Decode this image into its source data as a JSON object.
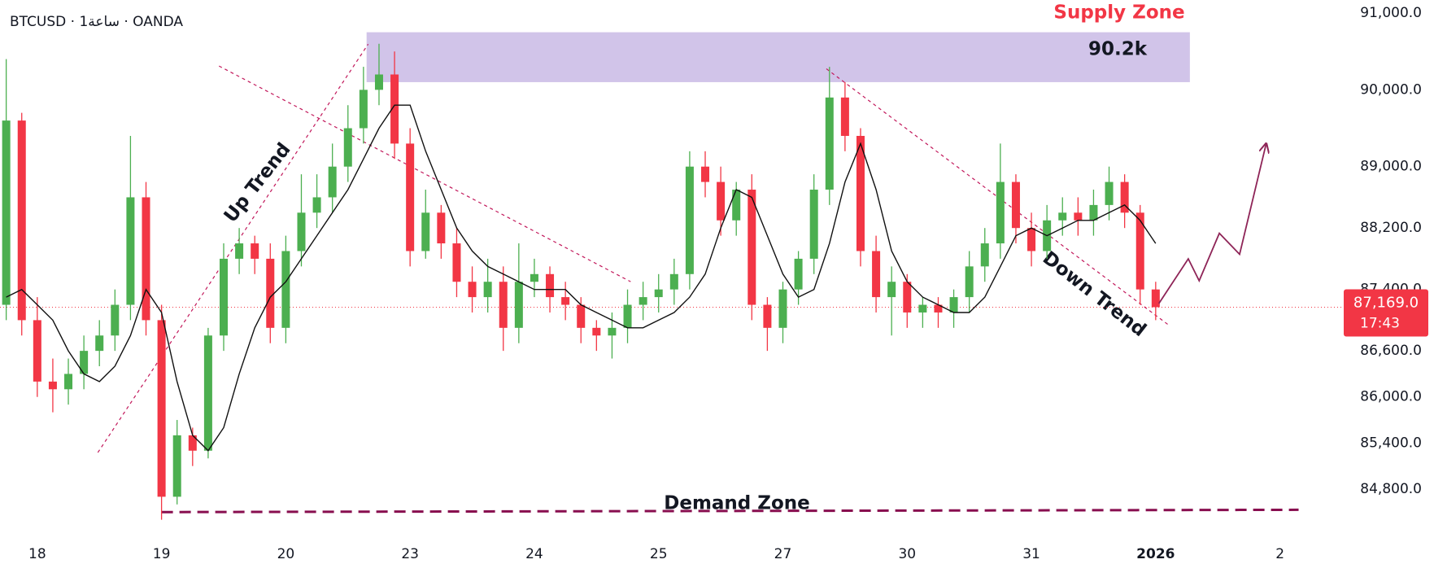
{
  "chart_data": {
    "type": "candlestick",
    "header": "BTCUSD · 1ساعة · OANDA",
    "x": [
      -2,
      -1,
      0,
      1,
      2,
      3,
      4,
      5,
      6,
      7,
      8,
      9,
      10,
      11,
      12,
      13,
      14,
      15,
      16,
      17,
      18,
      19,
      20,
      21,
      22,
      23,
      24,
      25,
      26,
      27,
      28,
      29,
      30,
      31,
      32,
      33,
      34,
      35,
      36,
      37,
      38,
      39,
      40,
      41,
      42,
      43,
      44,
      45,
      46,
      47,
      48,
      49,
      50,
      51,
      52,
      53,
      54,
      55,
      56,
      57,
      58,
      59,
      60,
      61,
      62,
      63,
      64,
      65,
      66,
      67,
      68,
      69,
      70,
      71,
      72
    ],
    "open": [
      87200,
      89600,
      87000,
      86200,
      86100,
      86300,
      86600,
      86800,
      87200,
      88600,
      87000,
      84700,
      85500,
      85300,
      86800,
      87800,
      88000,
      87800,
      86900,
      87900,
      88400,
      88600,
      89000,
      89500,
      90000,
      90200,
      89300,
      87900,
      88400,
      88000,
      87500,
      87300,
      87500,
      86900,
      87500,
      87600,
      87300,
      87200,
      86900,
      86800,
      86900,
      87200,
      87300,
      87400,
      87600,
      89000,
      88800,
      88300,
      88700,
      87200,
      86900,
      87400,
      87800,
      88700,
      89900,
      89400,
      87900,
      87300,
      87500,
      87100,
      87200,
      87100,
      87300,
      87700,
      88000,
      88800,
      88200,
      87900,
      88300,
      88400,
      88300,
      88500,
      88800,
      88400,
      87400
    ],
    "high": [
      90400,
      89700,
      87300,
      86500,
      86500,
      86800,
      87000,
      87400,
      89400,
      88800,
      87200,
      85700,
      85600,
      86900,
      88000,
      88200,
      88100,
      88000,
      88100,
      88900,
      88900,
      89300,
      89800,
      90300,
      90600,
      90500,
      89500,
      88700,
      88500,
      88200,
      87700,
      87800,
      87700,
      88000,
      87800,
      87700,
      87500,
      87300,
      87000,
      87100,
      87400,
      87500,
      87600,
      87800,
      89200,
      89200,
      89000,
      88800,
      88900,
      87300,
      87500,
      87900,
      88900,
      90300,
      90100,
      89500,
      88100,
      87700,
      87600,
      87300,
      87300,
      87400,
      87900,
      88200,
      89300,
      88900,
      88400,
      88500,
      88600,
      88600,
      88700,
      89000,
      88900,
      88500,
      87500
    ],
    "low": [
      87000,
      86800,
      86000,
      85800,
      85900,
      86100,
      86400,
      86600,
      87000,
      86800,
      84400,
      84600,
      85100,
      85200,
      86600,
      87600,
      87600,
      86700,
      86700,
      87700,
      88200,
      88400,
      88800,
      89300,
      89800,
      89100,
      87700,
      87800,
      87800,
      87300,
      87100,
      87100,
      86600,
      86700,
      87300,
      87100,
      87000,
      86700,
      86600,
      86500,
      86700,
      87000,
      87100,
      87200,
      87400,
      88600,
      88100,
      88100,
      87000,
      86600,
      86700,
      87200,
      87600,
      88500,
      89200,
      87700,
      87100,
      86800,
      86900,
      86900,
      86900,
      86900,
      87100,
      87500,
      87800,
      88000,
      87700,
      87800,
      88100,
      88100,
      88100,
      88300,
      88200,
      87200,
      87000
    ],
    "close": [
      89600,
      87000,
      86200,
      86100,
      86300,
      86600,
      86800,
      87200,
      88600,
      87000,
      84700,
      85500,
      85300,
      86800,
      87800,
      88000,
      87800,
      86900,
      87900,
      88400,
      88600,
      89000,
      89500,
      90000,
      90200,
      89300,
      87900,
      88400,
      88000,
      87500,
      87300,
      87500,
      86900,
      87500,
      87600,
      87300,
      87200,
      86900,
      86800,
      86900,
      87200,
      87300,
      87400,
      87600,
      89000,
      88800,
      88300,
      88700,
      87200,
      86900,
      87400,
      87800,
      88700,
      89900,
      89400,
      87900,
      87300,
      87500,
      87100,
      87200,
      87100,
      87300,
      87700,
      88000,
      88800,
      88200,
      87900,
      88300,
      88400,
      88300,
      88500,
      88800,
      88400,
      87400,
      87169
    ],
    "up_color": "#4caf50",
    "down_color": "#f23645",
    "ma": {
      "color": "#111111",
      "values": [
        87300,
        87400,
        87200,
        87000,
        86600,
        86300,
        86200,
        86400,
        86800,
        87400,
        87100,
        86200,
        85500,
        85300,
        85600,
        86300,
        86900,
        87300,
        87500,
        87800,
        88100,
        88400,
        88700,
        89100,
        89500,
        89800,
        89800,
        89200,
        88700,
        88200,
        87900,
        87700,
        87600,
        87500,
        87400,
        87400,
        87400,
        87200,
        87100,
        87000,
        86900,
        86900,
        87000,
        87100,
        87300,
        87600,
        88200,
        88700,
        88600,
        88100,
        87600,
        87300,
        87400,
        88000,
        88800,
        89300,
        88700,
        87900,
        87500,
        87300,
        87200,
        87100,
        87100,
        87300,
        87700,
        88100,
        88200,
        88100,
        88200,
        88300,
        88300,
        88400,
        88500,
        88300,
        88000
      ]
    },
    "xlim": [
      -2.4,
      84
    ],
    "ylim": [
      84280,
      91170
    ],
    "xticks": [
      {
        "value": 0,
        "label": "18"
      },
      {
        "value": 8,
        "label": "19"
      },
      {
        "value": 16,
        "label": "20"
      },
      {
        "value": 24,
        "label": "23"
      },
      {
        "value": 32,
        "label": "24"
      },
      {
        "value": 40,
        "label": "25"
      },
      {
        "value": 48,
        "label": "27"
      },
      {
        "value": 56,
        "label": "30"
      },
      {
        "value": 64,
        "label": "31"
      },
      {
        "value": 72,
        "label": "2026"
      },
      {
        "value": 80,
        "label": "2"
      }
    ],
    "yticks": [
      {
        "value": 91000,
        "label": "91,000.0"
      },
      {
        "value": 90000,
        "label": "90,000.0"
      },
      {
        "value": 89000,
        "label": "89,000.0"
      },
      {
        "value": 88200,
        "label": "88,200.0"
      },
      {
        "value": 87400,
        "label": "87,400.0"
      },
      {
        "value": 86600,
        "label": "86,600.0"
      },
      {
        "value": 86000,
        "label": "86,000.0"
      },
      {
        "value": 85400,
        "label": "85,400.0"
      },
      {
        "value": 84800,
        "label": "84,800.0"
      }
    ],
    "last_price": {
      "value": 87169,
      "label": "87,169.0",
      "countdown": "17:43",
      "color": "#f23645"
    },
    "supply_zone": {
      "label": "Supply Zone",
      "value_label": "90.2k",
      "x": [
        21.2,
        74.2
      ],
      "y": [
        90100,
        90750
      ],
      "color": "#d1c4e9"
    },
    "demand_zone": {
      "label": "Demand Zone",
      "x": [
        8,
        81.2
      ],
      "y": [
        84500,
        84530
      ],
      "color": "#880e4f"
    },
    "trend_lines": [
      {
        "label": "Up Trend",
        "x": [
          3.9,
          21.3
        ],
        "y": [
          85276,
          90595
        ]
      },
      {
        "x": [
          11.7,
          38.2
        ],
        "y": [
          90310,
          87501
        ]
      },
      {
        "label": "Down Trend",
        "x": [
          50.8,
          72.8
        ],
        "y": [
          90274,
          86942
        ]
      }
    ],
    "trend_color": "#c2185b",
    "projection": {
      "x": [
        72.2,
        74.1,
        74.8,
        76.1,
        77.4,
        79.1
      ],
      "y": [
        87216,
        87799,
        87513,
        88132,
        87858,
        89286
      ],
      "color": "#8e2457"
    }
  }
}
